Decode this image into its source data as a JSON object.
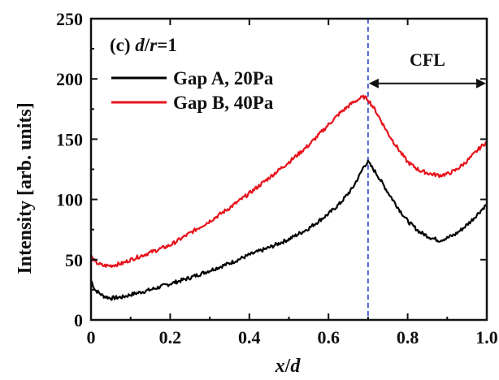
{
  "chart_data": {
    "type": "line",
    "panel_label": {
      "prefix": "(c) ",
      "var_d": "d",
      "slash": "/",
      "var_r": "r",
      "suffix": "=1"
    },
    "xlabel": {
      "var_x": "x",
      "slash": "/",
      "var_d": "d"
    },
    "ylabel": "Intensity [arb. units]",
    "xlim": [
      0,
      1.0
    ],
    "ylim": [
      0,
      250
    ],
    "x_ticks": [
      0,
      0.2,
      0.4,
      0.6,
      0.8,
      1.0
    ],
    "x_tick_labels": [
      "0",
      "0.2",
      "0.4",
      "0.6",
      "0.8",
      "1.0"
    ],
    "y_ticks": [
      0,
      50,
      100,
      150,
      200,
      250
    ],
    "y_tick_labels": [
      "0",
      "50",
      "100",
      "150",
      "200",
      "250"
    ],
    "grid": false,
    "legend_position": "top-left",
    "annotation": {
      "text": "CFL",
      "x_start": 0.7,
      "x_end": 1.0,
      "y": 205
    },
    "vline": {
      "x": 0.7,
      "color": "#2a3fd6",
      "style": "dashed"
    },
    "series": [
      {
        "name": "Gap A, 20Pa",
        "color": "#000000",
        "x": [
          0.0,
          0.01,
          0.03,
          0.05,
          0.08,
          0.1,
          0.15,
          0.2,
          0.25,
          0.3,
          0.35,
          0.4,
          0.45,
          0.5,
          0.55,
          0.6,
          0.63,
          0.66,
          0.68,
          0.69,
          0.7,
          0.72,
          0.75,
          0.78,
          0.8,
          0.83,
          0.86,
          0.88,
          0.9,
          0.92,
          0.94,
          0.96,
          0.98,
          1.0
        ],
        "y": [
          33,
          25,
          20,
          18,
          19,
          21,
          25,
          30,
          35,
          41,
          47,
          54,
          60,
          67,
          76,
          88,
          97,
          109,
          121,
          128,
          131,
          122,
          106,
          91,
          82,
          73,
          68,
          66,
          68,
          71,
          76,
          82,
          89,
          96
        ]
      },
      {
        "name": "Gap B, 40Pa",
        "color": "#e8121b",
        "x": [
          0.0,
          0.01,
          0.03,
          0.05,
          0.08,
          0.1,
          0.15,
          0.2,
          0.25,
          0.3,
          0.35,
          0.4,
          0.45,
          0.5,
          0.55,
          0.6,
          0.63,
          0.66,
          0.68,
          0.69,
          0.7,
          0.72,
          0.75,
          0.78,
          0.8,
          0.83,
          0.86,
          0.88,
          0.9,
          0.92,
          0.94,
          0.96,
          0.98,
          1.0
        ],
        "y": [
          53,
          48,
          45,
          45,
          47,
          50,
          56,
          62,
          72,
          82,
          93,
          105,
          118,
          131,
          145,
          162,
          172,
          180,
          184,
          185,
          183,
          173,
          155,
          140,
          131,
          124,
          121,
          120,
          121,
          124,
          129,
          135,
          142,
          148
        ]
      }
    ]
  }
}
